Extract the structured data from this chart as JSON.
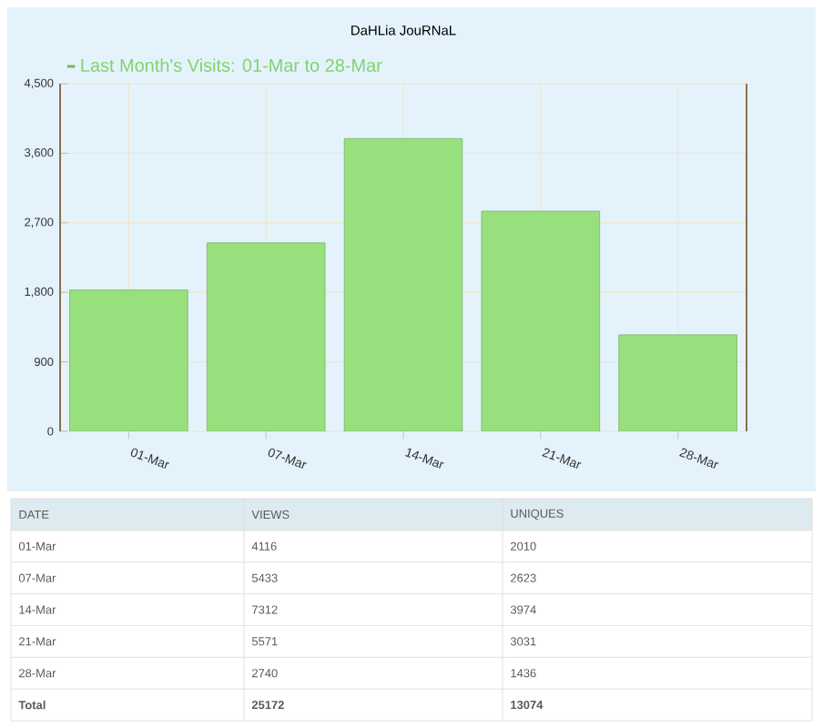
{
  "chart_data": {
    "type": "bar",
    "title": "DaHLia JouRNaL",
    "categories": [
      "01-Mar",
      "07-Mar",
      "14-Mar",
      "21-Mar",
      "28-Mar"
    ],
    "series": [
      {
        "name": "Last Month's Visits: 01-Mar to 28-Mar",
        "color": "#98e07e",
        "values": [
          1830,
          2440,
          3790,
          2850,
          1250
        ]
      }
    ],
    "ylim": [
      0,
      4500
    ],
    "yticks": [
      0,
      900,
      {
        "value": 1800,
        "label": "1,800"
      },
      {
        "value": 2700,
        "label": "2,700"
      },
      {
        "value": 3600,
        "label": "3,600"
      },
      {
        "value": 4500,
        "label": "4,500"
      }
    ],
    "grid": true,
    "legend": "top left",
    "annotations": [
      "DATE",
      "VIEWS",
      "UNIQUES",
      "01-Mar",
      "4116",
      "2010",
      "07-Mar",
      "5433",
      "2623",
      "14-Mar",
      "7312",
      "3974",
      "21-Mar",
      "5571",
      "3031",
      "28-Mar",
      "2740",
      "1436",
      "**Total**",
      "**25172**",
      "**13074**"
    ]
  }
}
